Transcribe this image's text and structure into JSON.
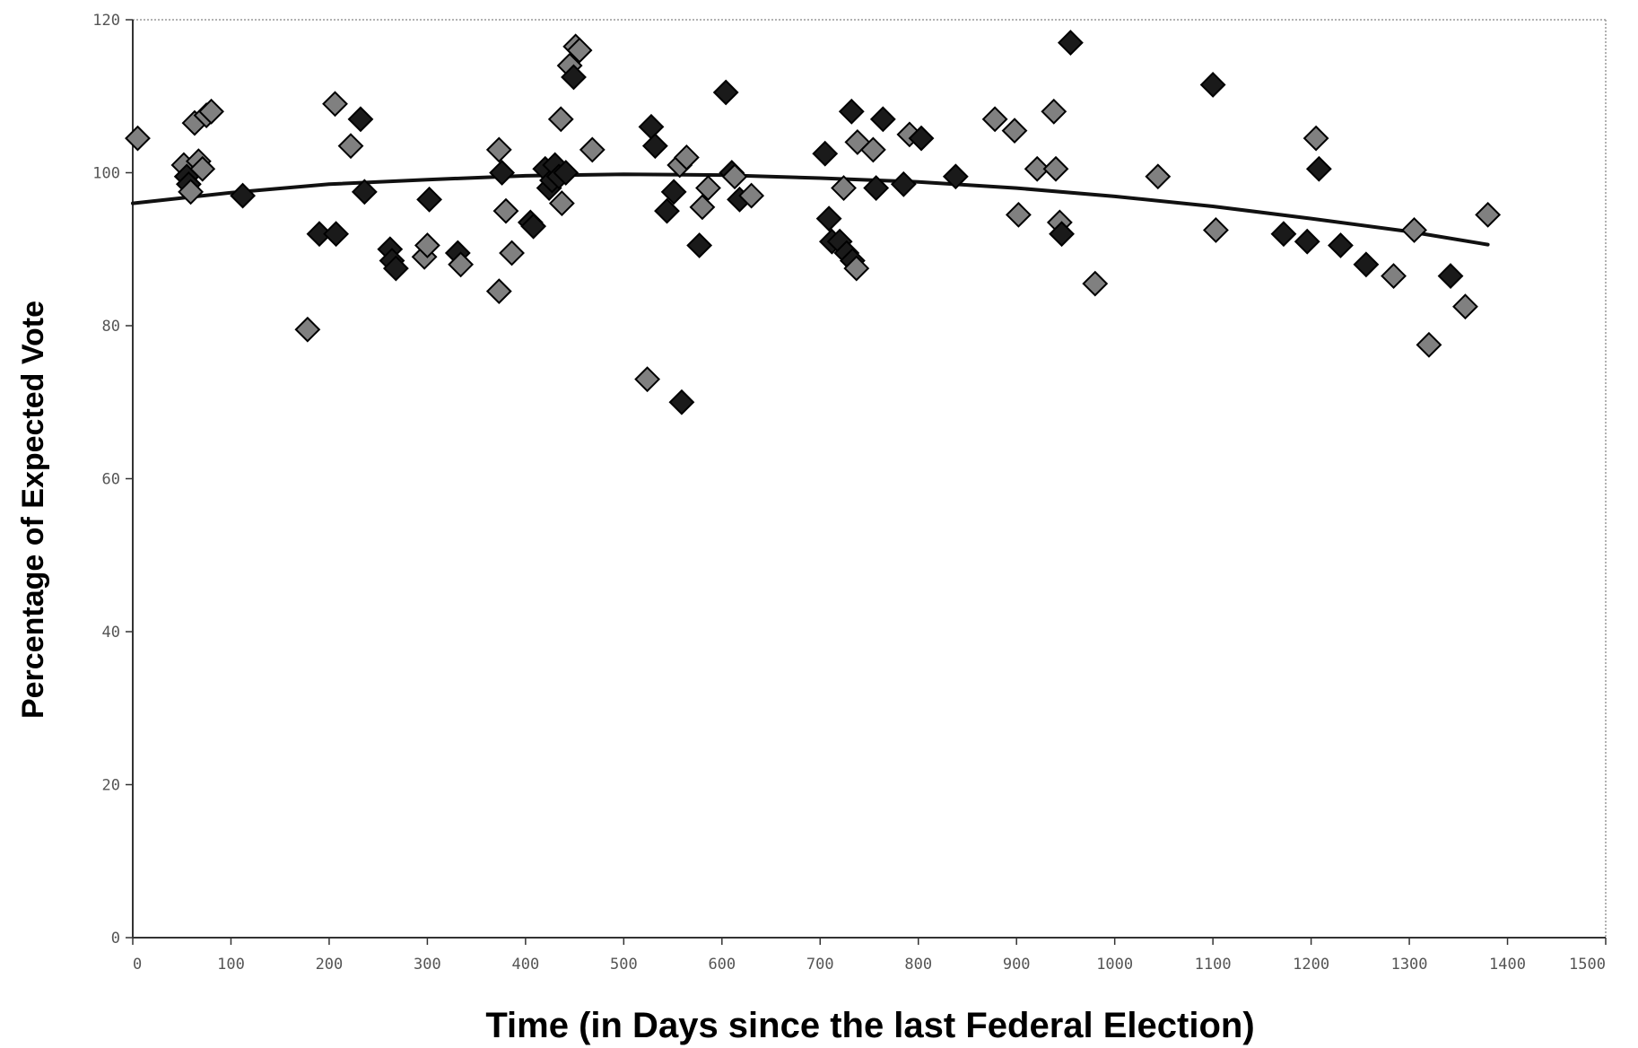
{
  "chart_data": {
    "type": "scatter",
    "title": "",
    "xlabel": "Time (in Days since the last Federal Election)",
    "ylabel": "Percentage of Expected Vote",
    "xlim": [
      0,
      1500
    ],
    "ylim": [
      0,
      120
    ],
    "xticks": [
      0,
      100,
      200,
      300,
      400,
      500,
      600,
      700,
      800,
      900,
      1000,
      1100,
      1200,
      1300,
      1400,
      1500
    ],
    "yticks": [
      0,
      20,
      40,
      60,
      80,
      100,
      120
    ],
    "grid": false,
    "legend": "none",
    "colors": {
      "marker_fill": "#808080",
      "marker_dark": "#1a1a1a",
      "trend": "#111111",
      "axis": "#333333",
      "frame": "#999999"
    },
    "points": [
      [
        5,
        104.5
      ],
      [
        52,
        101
      ],
      [
        55,
        99.5
      ],
      [
        57,
        98.5
      ],
      [
        59,
        97.5
      ],
      [
        63,
        106.5
      ],
      [
        67,
        101.5
      ],
      [
        71,
        100.5
      ],
      [
        75,
        107.5
      ],
      [
        80,
        108
      ],
      [
        112,
        97
      ],
      [
        178,
        79.5
      ],
      [
        190,
        92
      ],
      [
        207,
        92
      ],
      [
        206,
        109
      ],
      [
        222,
        103.5
      ],
      [
        232,
        107
      ],
      [
        236,
        97.5
      ],
      [
        262,
        90
      ],
      [
        264,
        88.5
      ],
      [
        268,
        87.5
      ],
      [
        297,
        89
      ],
      [
        300,
        90.5
      ],
      [
        302,
        96.5
      ],
      [
        331,
        89.5
      ],
      [
        334,
        88
      ],
      [
        373,
        103
      ],
      [
        376,
        100
      ],
      [
        380,
        95
      ],
      [
        386,
        89.5
      ],
      [
        373,
        84.5
      ],
      [
        405,
        93.5
      ],
      [
        408,
        93
      ],
      [
        420,
        100.5
      ],
      [
        424,
        98
      ],
      [
        427,
        99
      ],
      [
        430,
        101
      ],
      [
        434,
        99.5
      ],
      [
        436,
        107
      ],
      [
        437,
        96
      ],
      [
        441,
        100
      ],
      [
        445,
        114
      ],
      [
        449,
        112.5
      ],
      [
        451,
        116.5
      ],
      [
        455,
        116
      ],
      [
        468,
        103
      ],
      [
        524,
        73
      ],
      [
        528,
        106
      ],
      [
        532,
        103.5
      ],
      [
        544,
        95
      ],
      [
        551,
        97.5
      ],
      [
        557,
        101
      ],
      [
        564,
        102
      ],
      [
        559,
        70
      ],
      [
        580,
        95.5
      ],
      [
        586,
        98
      ],
      [
        577,
        90.5
      ],
      [
        604,
        110.5
      ],
      [
        610,
        100
      ],
      [
        613,
        99.5
      ],
      [
        618,
        96.5
      ],
      [
        630,
        97
      ],
      [
        705,
        102.5
      ],
      [
        709,
        94
      ],
      [
        712,
        91
      ],
      [
        720,
        91
      ],
      [
        727,
        89.5
      ],
      [
        733,
        88.5
      ],
      [
        737,
        87.5
      ],
      [
        724,
        98
      ],
      [
        732,
        108
      ],
      [
        738,
        104
      ],
      [
        754,
        103
      ],
      [
        757,
        98
      ],
      [
        764,
        107
      ],
      [
        785,
        98.5
      ],
      [
        791,
        105
      ],
      [
        803,
        104.5
      ],
      [
        838,
        99.5
      ],
      [
        878,
        107
      ],
      [
        898,
        105.5
      ],
      [
        902,
        94.5
      ],
      [
        921,
        100.5
      ],
      [
        938,
        108
      ],
      [
        940,
        100.5
      ],
      [
        944,
        93.5
      ],
      [
        946,
        92
      ],
      [
        955,
        117
      ],
      [
        980,
        85.5
      ],
      [
        1044,
        99.5
      ],
      [
        1100,
        111.5
      ],
      [
        1103,
        92.5
      ],
      [
        1172,
        92
      ],
      [
        1196,
        91
      ],
      [
        1205,
        104.5
      ],
      [
        1208,
        100.5
      ],
      [
        1230,
        90.5
      ],
      [
        1256,
        88
      ],
      [
        1284,
        86.5
      ],
      [
        1305,
        92.5
      ],
      [
        1320,
        77.5
      ],
      [
        1342,
        86.5
      ],
      [
        1357,
        82.5
      ],
      [
        1380,
        94.5
      ]
    ],
    "dark_indices": [
      2,
      3,
      10,
      12,
      13,
      16,
      17,
      18,
      19,
      20,
      23,
      24,
      27,
      31,
      32,
      33,
      34,
      35,
      36,
      37,
      40,
      42,
      47,
      48,
      49,
      50,
      53,
      56,
      57,
      58,
      60,
      62,
      63,
      64,
      65,
      66,
      67,
      70,
      73,
      74,
      75,
      77,
      78,
      86,
      87,
      90,
      92,
      93,
      95,
      96,
      97,
      101
    ],
    "trend": {
      "type": "polynomial",
      "x": [
        0,
        100,
        200,
        300,
        400,
        500,
        600,
        700,
        800,
        900,
        1000,
        1100,
        1200,
        1300,
        1380
      ],
      "y": [
        96,
        97.4,
        98.5,
        99.1,
        99.6,
        99.8,
        99.7,
        99.3,
        98.8,
        98.0,
        96.9,
        95.6,
        94.0,
        92.3,
        90.6
      ]
    }
  }
}
